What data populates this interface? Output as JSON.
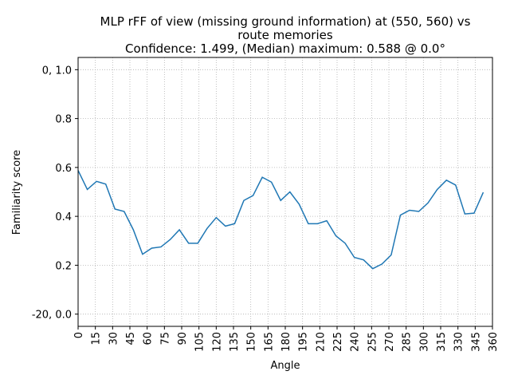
{
  "chart_data": {
    "type": "line",
    "title": [
      "MLP rFF of view (missing ground information) at (550, 560) vs",
      "route memories",
      "Confidence: 1.499, (Median) maximum: 0.588 @ 0.0°"
    ],
    "x_label": "Angle",
    "y_label": "Familiarity score",
    "x": [
      0,
      8,
      16,
      24,
      32,
      40,
      48,
      56,
      64,
      72,
      80,
      88,
      96,
      104,
      112,
      120,
      128,
      136,
      144,
      152,
      160,
      168,
      176,
      184,
      192,
      200,
      208,
      216,
      224,
      232,
      240,
      248,
      256,
      264,
      272,
      280,
      288,
      296,
      304,
      312,
      320,
      328,
      336,
      344,
      352
    ],
    "series": [
      {
        "name": "familiarity",
        "color": "#1f77b4",
        "values": [
          0.588,
          0.51,
          0.543,
          0.532,
          0.43,
          0.42,
          0.345,
          0.245,
          0.27,
          0.275,
          0.305,
          0.345,
          0.29,
          0.29,
          0.35,
          0.395,
          0.36,
          0.37,
          0.465,
          0.485,
          0.56,
          0.54,
          0.465,
          0.5,
          0.45,
          0.37,
          0.37,
          0.382,
          0.32,
          0.29,
          0.232,
          0.222,
          0.186,
          0.205,
          0.242,
          0.405,
          0.425,
          0.42,
          0.455,
          0.51,
          0.548,
          0.528,
          0.41,
          0.413,
          0.498
        ]
      }
    ],
    "xlim": [
      0,
      360
    ],
    "xticks": [
      0,
      15,
      30,
      45,
      60,
      75,
      90,
      105,
      120,
      135,
      150,
      165,
      180,
      195,
      210,
      225,
      240,
      255,
      270,
      285,
      300,
      315,
      330,
      345,
      360
    ],
    "ylim": [
      -0.05,
      1.05
    ],
    "yticks": [
      {
        "value": 0.0,
        "label": "-20, 0.0"
      },
      0.2,
      0.4,
      0.6,
      0.8,
      {
        "value": 1.0,
        "label": "0, 1.0"
      }
    ],
    "grid": true
  }
}
